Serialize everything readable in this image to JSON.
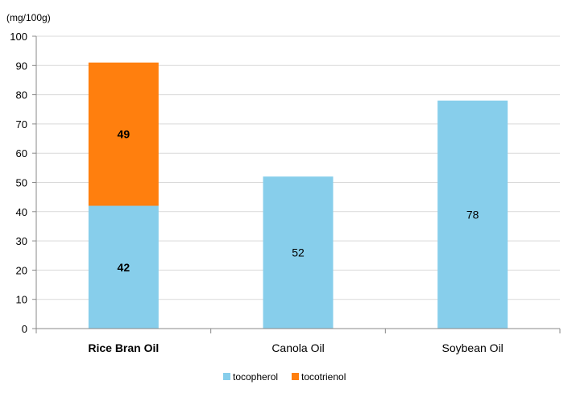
{
  "chart_data": {
    "type": "bar",
    "stacked": true,
    "unit_label": "(mg/100g)",
    "categories": [
      "Rice Bran Oil",
      "Canola Oil",
      "Soybean Oil"
    ],
    "highlight_category": "Rice Bran Oil",
    "series": [
      {
        "name": "tocopherol",
        "color": "#87CEEB",
        "values": [
          42,
          52,
          78
        ]
      },
      {
        "name": "tocotrienol",
        "color": "#FF7F0E",
        "values": [
          49,
          0,
          0
        ]
      }
    ],
    "data_labels": [
      {
        "category": "Rice Bran Oil",
        "series": "tocopherol",
        "text": "42",
        "bold": true
      },
      {
        "category": "Rice Bran Oil",
        "series": "tocotrienol",
        "text": "49",
        "bold": true
      },
      {
        "category": "Canola Oil",
        "series": "tocopherol",
        "text": "52",
        "bold": false
      },
      {
        "category": "Soybean Oil",
        "series": "tocopherol",
        "text": "78",
        "bold": false
      }
    ],
    "ylim": [
      0,
      100
    ],
    "yticks": [
      "0",
      "10",
      "20",
      "30",
      "40",
      "50",
      "60",
      "70",
      "80",
      "90",
      "100"
    ],
    "grid": true,
    "legend_position": "bottom"
  }
}
